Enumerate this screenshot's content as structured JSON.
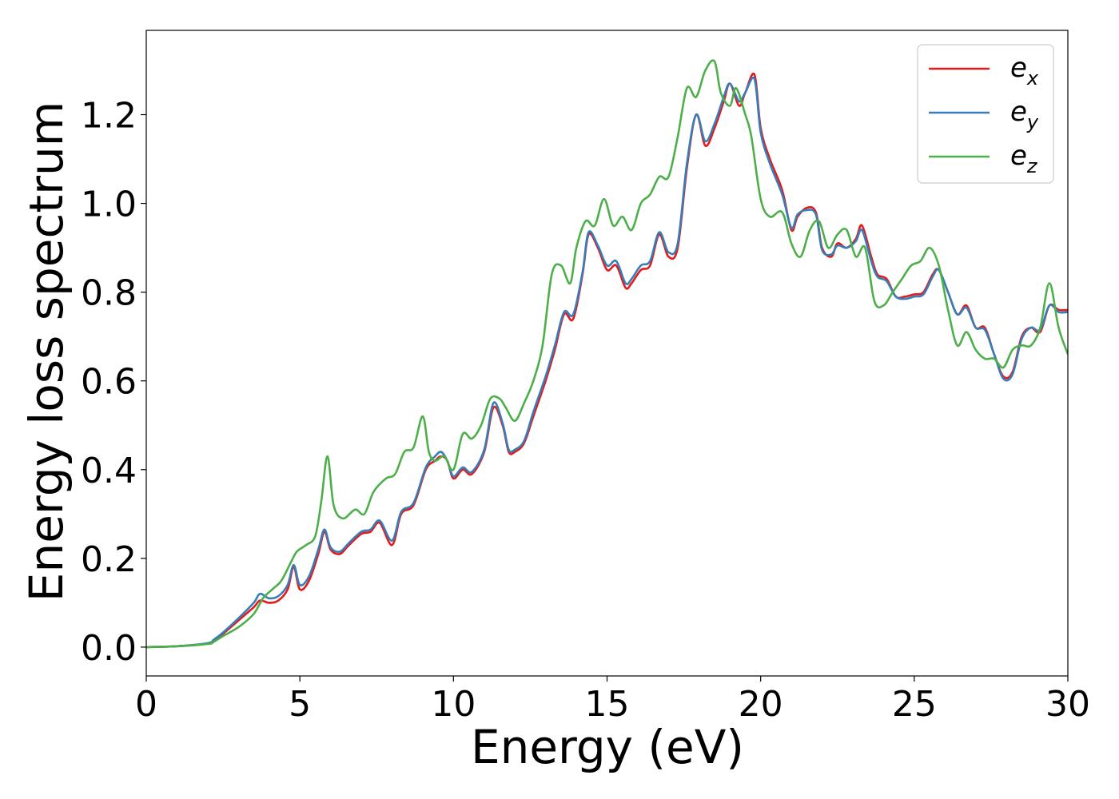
{
  "chart_data": {
    "type": "line",
    "xlabel": "Energy (eV)",
    "ylabel": "Energy loss spectrum",
    "xlim": [
      0,
      30
    ],
    "ylim": [
      -0.065,
      1.39
    ],
    "xticks": [
      0,
      5,
      10,
      15,
      20,
      25,
      30
    ],
    "xtick_labels": [
      "0",
      "5",
      "10",
      "15",
      "20",
      "25",
      "30"
    ],
    "yticks": [
      0.0,
      0.2,
      0.4,
      0.6,
      0.8,
      1.0,
      1.2
    ],
    "ytick_labels": [
      "0.0",
      "0.2",
      "0.4",
      "0.6",
      "0.8",
      "1.0",
      "1.2"
    ],
    "grid": false,
    "legend_position": "top-right",
    "series": [
      {
        "name": "e_x",
        "label_base": "e",
        "label_sub": "x",
        "color": "#e41a1c",
        "x": [
          0,
          1,
          2,
          2.2,
          2.5,
          3,
          3.5,
          3.7,
          4,
          4.3,
          4.6,
          4.8,
          5,
          5.3,
          5.6,
          5.8,
          6,
          6.3,
          6.6,
          7,
          7.3,
          7.6,
          8,
          8.3,
          8.7,
          9.1,
          9.4,
          9.6,
          9.8,
          10,
          10.3,
          10.6,
          11,
          11.3,
          11.6,
          11.8,
          12,
          12.3,
          12.6,
          13,
          13.3,
          13.6,
          13.9,
          14.2,
          14.4,
          14.7,
          15,
          15.3,
          15.6,
          15.8,
          16.1,
          16.4,
          16.7,
          17,
          17.3,
          17.6,
          17.9,
          18.2,
          18.5,
          18.8,
          19,
          19.3,
          19.5,
          19.8,
          20,
          20.3,
          20.7,
          21,
          21.2,
          21.5,
          21.8,
          22,
          22.3,
          22.5,
          22.8,
          23.1,
          23.3,
          23.6,
          23.8,
          24.1,
          24.4,
          24.7,
          25,
          25.3,
          25.6,
          25.8,
          26.1,
          26.4,
          26.7,
          27,
          27.3,
          27.6,
          27.9,
          28.2,
          28.5,
          28.8,
          29.1,
          29.4,
          29.7,
          30
        ],
        "y": [
          0.0,
          0.002,
          0.008,
          0.015,
          0.03,
          0.06,
          0.09,
          0.105,
          0.1,
          0.105,
          0.13,
          0.18,
          0.13,
          0.15,
          0.21,
          0.26,
          0.22,
          0.21,
          0.23,
          0.255,
          0.26,
          0.28,
          0.23,
          0.3,
          0.32,
          0.4,
          0.42,
          0.43,
          0.42,
          0.38,
          0.4,
          0.39,
          0.44,
          0.54,
          0.5,
          0.44,
          0.44,
          0.46,
          0.52,
          0.6,
          0.67,
          0.75,
          0.74,
          0.84,
          0.93,
          0.9,
          0.85,
          0.86,
          0.81,
          0.82,
          0.85,
          0.86,
          0.93,
          0.88,
          0.9,
          1.08,
          1.2,
          1.13,
          1.17,
          1.23,
          1.27,
          1.22,
          1.25,
          1.29,
          1.17,
          1.1,
          1.03,
          0.94,
          0.97,
          0.99,
          0.98,
          0.9,
          0.88,
          0.91,
          0.9,
          0.92,
          0.95,
          0.88,
          0.84,
          0.83,
          0.79,
          0.79,
          0.795,
          0.8,
          0.84,
          0.85,
          0.8,
          0.75,
          0.77,
          0.72,
          0.72,
          0.66,
          0.61,
          0.62,
          0.7,
          0.72,
          0.71,
          0.77,
          0.76,
          0.76
        ]
      },
      {
        "name": "e_y",
        "label_base": "e",
        "label_sub": "y",
        "color": "#377eb8",
        "x": [
          0,
          1,
          2,
          2.2,
          2.5,
          3,
          3.5,
          3.7,
          4,
          4.3,
          4.6,
          4.8,
          5,
          5.3,
          5.6,
          5.8,
          6,
          6.3,
          6.6,
          7,
          7.3,
          7.6,
          8,
          8.3,
          8.7,
          9.1,
          9.4,
          9.6,
          9.8,
          10,
          10.3,
          10.6,
          11,
          11.3,
          11.6,
          11.8,
          12,
          12.3,
          12.6,
          13,
          13.3,
          13.6,
          13.9,
          14.2,
          14.4,
          14.7,
          15,
          15.3,
          15.6,
          15.8,
          16.1,
          16.4,
          16.7,
          17,
          17.3,
          17.6,
          17.9,
          18.2,
          18.5,
          18.8,
          19,
          19.3,
          19.5,
          19.8,
          20,
          20.3,
          20.7,
          21,
          21.2,
          21.5,
          21.8,
          22,
          22.3,
          22.5,
          22.8,
          23.1,
          23.3,
          23.6,
          23.8,
          24.1,
          24.4,
          24.7,
          25,
          25.3,
          25.6,
          25.8,
          26.1,
          26.4,
          26.7,
          27,
          27.3,
          27.6,
          27.9,
          28.2,
          28.5,
          28.8,
          29.1,
          29.4,
          29.7,
          30
        ],
        "y": [
          0.0,
          0.002,
          0.009,
          0.017,
          0.033,
          0.065,
          0.1,
          0.12,
          0.11,
          0.115,
          0.14,
          0.185,
          0.14,
          0.16,
          0.22,
          0.265,
          0.225,
          0.215,
          0.235,
          0.26,
          0.265,
          0.285,
          0.24,
          0.305,
          0.325,
          0.405,
          0.43,
          0.44,
          0.42,
          0.385,
          0.405,
          0.395,
          0.445,
          0.55,
          0.505,
          0.445,
          0.445,
          0.465,
          0.53,
          0.61,
          0.68,
          0.755,
          0.75,
          0.845,
          0.935,
          0.905,
          0.86,
          0.87,
          0.82,
          0.83,
          0.86,
          0.87,
          0.935,
          0.89,
          0.91,
          1.09,
          1.2,
          1.14,
          1.18,
          1.24,
          1.27,
          1.23,
          1.25,
          1.28,
          1.16,
          1.09,
          1.02,
          0.945,
          0.975,
          0.985,
          0.975,
          0.895,
          0.885,
          0.905,
          0.9,
          0.915,
          0.94,
          0.87,
          0.835,
          0.825,
          0.79,
          0.785,
          0.79,
          0.795,
          0.835,
          0.85,
          0.8,
          0.75,
          0.765,
          0.72,
          0.715,
          0.66,
          0.605,
          0.615,
          0.695,
          0.72,
          0.715,
          0.77,
          0.755,
          0.755
        ]
      },
      {
        "name": "e_z",
        "label_base": "e",
        "label_sub": "z",
        "color": "#4daf4a",
        "x": [
          0,
          1,
          2,
          2.2,
          2.5,
          3,
          3.5,
          3.8,
          4.1,
          4.4,
          4.7,
          4.9,
          5.2,
          5.5,
          5.7,
          5.9,
          6.1,
          6.4,
          6.8,
          7.1,
          7.4,
          7.8,
          8.1,
          8.4,
          8.7,
          9.0,
          9.2,
          9.4,
          9.7,
          10,
          10.3,
          10.6,
          10.9,
          11.2,
          11.5,
          11.7,
          12,
          12.3,
          12.6,
          12.9,
          13.2,
          13.5,
          13.8,
          14,
          14.3,
          14.6,
          14.9,
          15.2,
          15.5,
          15.8,
          16.1,
          16.4,
          16.7,
          17,
          17.3,
          17.6,
          17.9,
          18.2,
          18.5,
          18.7,
          19,
          19.2,
          19.5,
          19.7,
          20,
          20.3,
          20.7,
          21,
          21.3,
          21.6,
          21.9,
          22.2,
          22.5,
          22.8,
          23.1,
          23.4,
          23.7,
          24,
          24.3,
          24.6,
          24.9,
          25.2,
          25.5,
          25.8,
          26.1,
          26.4,
          26.7,
          27,
          27.3,
          27.6,
          27.9,
          28.2,
          28.5,
          28.8,
          29.1,
          29.4,
          29.7,
          30
        ],
        "y": [
          0.0,
          0.002,
          0.007,
          0.012,
          0.025,
          0.045,
          0.075,
          0.11,
          0.13,
          0.15,
          0.19,
          0.215,
          0.23,
          0.25,
          0.33,
          0.43,
          0.32,
          0.29,
          0.31,
          0.3,
          0.35,
          0.38,
          0.39,
          0.44,
          0.45,
          0.52,
          0.44,
          0.42,
          0.43,
          0.4,
          0.48,
          0.47,
          0.5,
          0.56,
          0.56,
          0.54,
          0.51,
          0.55,
          0.6,
          0.68,
          0.84,
          0.86,
          0.82,
          0.9,
          0.96,
          0.95,
          1.01,
          0.95,
          0.97,
          0.94,
          1.0,
          1.02,
          1.06,
          1.06,
          1.15,
          1.26,
          1.24,
          1.3,
          1.32,
          1.25,
          1.22,
          1.26,
          1.2,
          1.15,
          1.01,
          0.97,
          0.98,
          0.91,
          0.88,
          0.94,
          0.96,
          0.9,
          0.93,
          0.94,
          0.88,
          0.9,
          0.78,
          0.77,
          0.8,
          0.83,
          0.86,
          0.87,
          0.9,
          0.86,
          0.76,
          0.68,
          0.71,
          0.67,
          0.65,
          0.65,
          0.63,
          0.67,
          0.68,
          0.68,
          0.72,
          0.82,
          0.72,
          0.66
        ]
      }
    ]
  }
}
